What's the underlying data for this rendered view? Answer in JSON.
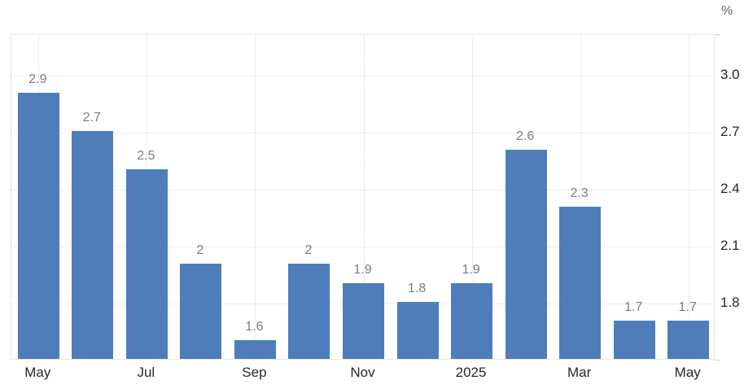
{
  "unit": "%",
  "chart_data": {
    "type": "bar",
    "title": "",
    "xlabel": "",
    "ylabel": "%",
    "unit": "%",
    "categories": [
      "May",
      "",
      "Jul",
      "",
      "Sep",
      "",
      "Nov",
      "",
      "2025",
      "",
      "Mar",
      "",
      "May"
    ],
    "values": [
      2.9,
      2.7,
      2.5,
      2.0,
      1.6,
      2.0,
      1.9,
      1.8,
      1.9,
      2.6,
      2.3,
      1.7,
      1.7
    ],
    "bar_labels": [
      "2.9",
      "2.7",
      "2.5",
      "2",
      "1.6",
      "2",
      "1.9",
      "1.8",
      "1.9",
      "2.6",
      "2.3",
      "1.7",
      "1.7"
    ],
    "x_ticks": [
      {
        "index": 0,
        "label": "May"
      },
      {
        "index": 2,
        "label": "Jul"
      },
      {
        "index": 4,
        "label": "Sep"
      },
      {
        "index": 6,
        "label": "Nov"
      },
      {
        "index": 8,
        "label": "2025"
      },
      {
        "index": 10,
        "label": "Mar"
      },
      {
        "index": 12,
        "label": "May"
      }
    ],
    "y_ticks": [
      {
        "value": 3.0,
        "label": "3.0"
      },
      {
        "value": 2.7,
        "label": "2.7"
      },
      {
        "value": 2.4,
        "label": "2.4"
      },
      {
        "value": 2.1,
        "label": "2.1"
      },
      {
        "value": 1.8,
        "label": "1.8"
      }
    ],
    "ylim": [
      1.5,
      3.214
    ],
    "grid": "dotted",
    "legend": "none",
    "colors": {
      "bar": "#4e7dba",
      "bar_label": "#7d7d7d",
      "axis_text": "#23292e",
      "unit_text": "#5b6670",
      "gridline": "#dcdcdc",
      "background": "#ffffff"
    }
  }
}
